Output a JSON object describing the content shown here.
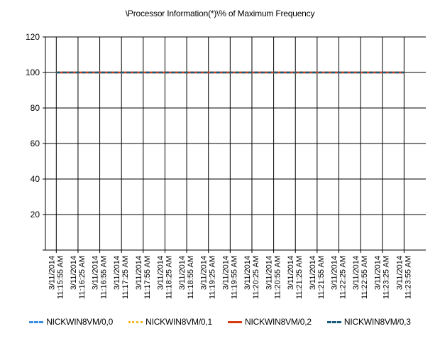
{
  "chart_data": {
    "type": "line",
    "title": "\\Processor Information(*)\\% of Maximum Frequency",
    "xlabel": "",
    "ylabel": "",
    "ylim": [
      0,
      120
    ],
    "yticks": [
      20,
      40,
      60,
      80,
      100,
      120
    ],
    "grid": true,
    "legend_position": "bottom",
    "categories": [
      [
        "3/11/2014",
        "11:15:55 AM"
      ],
      [
        "3/11/2014",
        "11:16:25 AM"
      ],
      [
        "3/11/2014",
        "11:16:55 AM"
      ],
      [
        "3/11/2014",
        "11:17:25 AM"
      ],
      [
        "3/11/2014",
        "11:17:55 AM"
      ],
      [
        "3/11/2014",
        "11:18:25 AM"
      ],
      [
        "3/11/2014",
        "11:18:55 AM"
      ],
      [
        "3/11/2014",
        "11:19:25 AM"
      ],
      [
        "3/11/2014",
        "11:19:55 AM"
      ],
      [
        "3/11/2014",
        "11:20:25 AM"
      ],
      [
        "3/11/2014",
        "11:20:55 AM"
      ],
      [
        "3/11/2014",
        "11:21:25 AM"
      ],
      [
        "3/11/2014",
        "11:21:55 AM"
      ],
      [
        "3/11/2014",
        "11:22:25 AM"
      ],
      [
        "3/11/2014",
        "11:22:55 AM"
      ],
      [
        "3/11/2014",
        "11:23:25 AM"
      ],
      [
        "3/11/2014",
        "11:23:55 AM"
      ]
    ],
    "series": [
      {
        "name": "NICKWIN8VM/0,0",
        "color": "#3c8fe0",
        "values": [
          100,
          100,
          100,
          100,
          100,
          100,
          100,
          100,
          100,
          100,
          100,
          100,
          100,
          100,
          100,
          100,
          100
        ]
      },
      {
        "name": "NICKWIN8VM/0,1",
        "color": "#f5b51e",
        "values": [
          100,
          100,
          100,
          100,
          100,
          100,
          100,
          100,
          100,
          100,
          100,
          100,
          100,
          100,
          100,
          100,
          100
        ]
      },
      {
        "name": "NICKWIN8VM/0,2",
        "color": "#d63a12",
        "values": [
          100,
          100,
          100,
          100,
          100,
          100,
          100,
          100,
          100,
          100,
          100,
          100,
          100,
          100,
          100,
          100,
          100
        ]
      },
      {
        "name": "NICKWIN8VM/0,3",
        "color": "#1a5a7a",
        "values": [
          100,
          100,
          100,
          100,
          100,
          100,
          100,
          100,
          100,
          100,
          100,
          100,
          100,
          100,
          100,
          100,
          100
        ]
      }
    ]
  }
}
